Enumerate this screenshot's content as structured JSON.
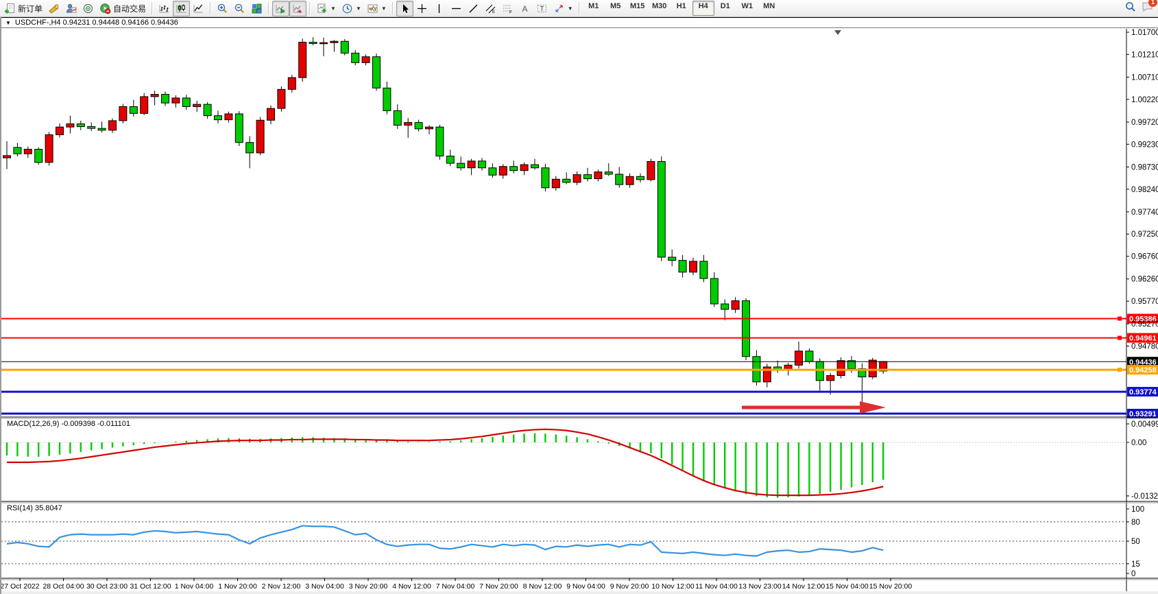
{
  "toolbar": {
    "new_order": "新订单",
    "autotrading": "自动交易",
    "timeframes": [
      "M1",
      "M5",
      "M15",
      "M30",
      "H1",
      "H4",
      "D1",
      "W1",
      "MN"
    ],
    "active_timeframe": "H4",
    "notification_badge": "1"
  },
  "window": {
    "title": "USDCHF-,H4  0.94231 0.94448 0.94166 0.94436"
  },
  "panes": {
    "macd_label": "MACD(12,26,9) -0.009398 -0.011101",
    "rsi_label": "RSI(14) 35.8047"
  },
  "chart_data": {
    "type": "candlestick",
    "symbol": "USDCHF-",
    "timeframe": "H4",
    "ohlc_display": {
      "open": "0.94231",
      "high": "0.94448",
      "low": "0.94166",
      "close": "0.94436"
    },
    "colors": {
      "up": "#e60000",
      "down": "#00cc00",
      "wick": "#000000",
      "macd_hist": "#00cc00",
      "macd_signal": "#d40000",
      "rsi_line": "#3793e0",
      "level_red": "#ff0000",
      "level_orange": "#ffa400",
      "level_blue": "#1111cc",
      "bid_line": "#000000",
      "arrow": "#de2f2f"
    },
    "price_axis_ticks": [
      "1.01700",
      "1.01210",
      "1.00710",
      "1.00220",
      "0.99720",
      "0.99230",
      "0.98730",
      "0.98240",
      "0.97740",
      "0.97250",
      "0.96760",
      "0.96260",
      "0.95770",
      "0.95270",
      "0.94780"
    ],
    "price_levels": [
      {
        "label": "0.95386",
        "price": 0.95386,
        "color_key": "level_red",
        "width": 2,
        "marker": true,
        "type": "resistance-line"
      },
      {
        "label": "0.94961",
        "price": 0.94961,
        "color_key": "level_red",
        "width": 2,
        "marker": true,
        "type": "resistance-line"
      },
      {
        "label": "0.94436",
        "price": 0.94436,
        "color_key": "bid_line",
        "width": 1,
        "marker": false,
        "type": "bid-price-line"
      },
      {
        "label": "0.94258",
        "price": 0.94258,
        "color_key": "level_orange",
        "width": 3,
        "marker": true,
        "type": "support-line"
      },
      {
        "label": "0.93774",
        "price": 0.93774,
        "color_key": "level_blue",
        "width": 3,
        "marker": false,
        "type": "support-line"
      },
      {
        "label": "0.93291",
        "price": 0.93291,
        "color_key": "level_blue",
        "width": 3,
        "marker": false,
        "type": "support-line"
      }
    ],
    "candles": [
      [
        0.9893,
        0.993,
        0.9868,
        0.9898
      ],
      [
        0.9916,
        0.9926,
        0.9896,
        0.9902
      ],
      [
        0.9902,
        0.9918,
        0.9893,
        0.9912
      ],
      [
        0.9912,
        0.9916,
        0.9878,
        0.9883
      ],
      [
        0.9883,
        0.995,
        0.9876,
        0.9944
      ],
      [
        0.9944,
        0.9969,
        0.9938,
        0.9961
      ],
      [
        0.9961,
        0.9986,
        0.9947,
        0.9968
      ],
      [
        0.9968,
        0.9975,
        0.9954,
        0.9962
      ],
      [
        0.9962,
        0.9971,
        0.9952,
        0.9958
      ],
      [
        0.9958,
        0.9973,
        0.9949,
        0.9954
      ],
      [
        0.9954,
        0.998,
        0.9948,
        0.9975
      ],
      [
        0.9975,
        1.0012,
        0.9969,
        1.0006
      ],
      [
        1.0006,
        1.0021,
        0.9984,
        0.9991
      ],
      [
        0.9991,
        1.0036,
        0.9987,
        1.0028
      ],
      [
        1.0028,
        1.0041,
        1.0009,
        1.0033
      ],
      [
        1.0033,
        1.0039,
        1.0007,
        1.0014
      ],
      [
        1.0014,
        1.0031,
        1.0004,
        1.0025
      ],
      [
        1.0025,
        1.0032,
        0.9999,
        1.0006
      ],
      [
        1.0006,
        1.0019,
        0.9994,
        1.0011
      ],
      [
        1.0011,
        1.0016,
        0.9979,
        0.9986
      ],
      [
        0.9986,
        0.9997,
        0.9969,
        0.9977
      ],
      [
        0.9977,
        0.9995,
        0.9971,
        0.999
      ],
      [
        0.999,
        0.9996,
        0.9919,
        0.9927
      ],
      [
        0.9927,
        0.9941,
        0.987,
        0.9904
      ],
      [
        0.9904,
        0.9983,
        0.9899,
        0.9976
      ],
      [
        0.9976,
        1.0009,
        0.9967,
        1.0002
      ],
      [
        1.0002,
        1.0051,
        0.9995,
        1.0044
      ],
      [
        1.0044,
        1.0076,
        1.0037,
        1.007
      ],
      [
        1.007,
        1.0156,
        1.0061,
        1.0148
      ],
      [
        1.0148,
        1.0159,
        1.0141,
        1.0145
      ],
      [
        1.0145,
        1.0158,
        1.0117,
        1.0147
      ],
      [
        1.0147,
        1.0153,
        1.0127,
        1.015
      ],
      [
        1.015,
        1.0155,
        1.0119,
        1.0124
      ],
      [
        1.0124,
        1.0131,
        1.0097,
        1.0103
      ],
      [
        1.0103,
        1.0121,
        1.0097,
        1.0116
      ],
      [
        1.0116,
        1.0123,
        1.0041,
        1.0047
      ],
      [
        1.0047,
        1.0061,
        0.9989,
        0.9997
      ],
      [
        0.9997,
        1.0011,
        0.9957,
        0.9965
      ],
      [
        0.9965,
        0.9981,
        0.9937,
        0.9971
      ],
      [
        0.9971,
        0.9977,
        0.9951,
        0.9957
      ],
      [
        0.9957,
        0.9965,
        0.9945,
        0.9961
      ],
      [
        0.9961,
        0.9966,
        0.9889,
        0.9897
      ],
      [
        0.9897,
        0.9911,
        0.9875,
        0.9881
      ],
      [
        0.9881,
        0.9896,
        0.9865,
        0.9871
      ],
      [
        0.9871,
        0.9891,
        0.9855,
        0.9886
      ],
      [
        0.9886,
        0.9893,
        0.9865,
        0.9871
      ],
      [
        0.9871,
        0.9881,
        0.9849,
        0.9855
      ],
      [
        0.9855,
        0.9879,
        0.9847,
        0.9874
      ],
      [
        0.9874,
        0.9887,
        0.9859,
        0.9865
      ],
      [
        0.9865,
        0.9883,
        0.9855,
        0.9878
      ],
      [
        0.9878,
        0.9891,
        0.9867,
        0.9871
      ],
      [
        0.9871,
        0.988,
        0.9819,
        0.9827
      ],
      [
        0.9827,
        0.9853,
        0.9821,
        0.9846
      ],
      [
        0.9846,
        0.9861,
        0.9835,
        0.9839
      ],
      [
        0.9839,
        0.9863,
        0.9833,
        0.9856
      ],
      [
        0.9856,
        0.9871,
        0.9841,
        0.9847
      ],
      [
        0.9847,
        0.9867,
        0.9841,
        0.9862
      ],
      [
        0.9862,
        0.9881,
        0.9853,
        0.9857
      ],
      [
        0.9857,
        0.9873,
        0.9827,
        0.9834
      ],
      [
        0.9834,
        0.9859,
        0.9827,
        0.9852
      ],
      [
        0.9852,
        0.9859,
        0.9839,
        0.9845
      ],
      [
        0.9845,
        0.9891,
        0.9841,
        0.9885
      ],
      [
        0.9885,
        0.9896,
        0.9665,
        0.9674
      ],
      [
        0.9674,
        0.9691,
        0.9654,
        0.9667
      ],
      [
        0.9667,
        0.9679,
        0.9629,
        0.9641
      ],
      [
        0.9641,
        0.9673,
        0.9634,
        0.9665
      ],
      [
        0.9665,
        0.9679,
        0.9619,
        0.9627
      ],
      [
        0.9627,
        0.9641,
        0.9564,
        0.9571
      ],
      [
        0.9571,
        0.9581,
        0.9535,
        0.9559
      ],
      [
        0.9559,
        0.9586,
        0.9551,
        0.9578
      ],
      [
        0.9578,
        0.9583,
        0.9447,
        0.9455
      ],
      [
        0.9455,
        0.9469,
        0.9391,
        0.9399
      ],
      [
        0.9399,
        0.9439,
        0.9387,
        0.9432
      ],
      [
        0.9432,
        0.9446,
        0.9419,
        0.9425
      ],
      [
        0.9425,
        0.9441,
        0.9413,
        0.9436
      ],
      [
        0.9436,
        0.9488,
        0.9429,
        0.9467
      ],
      [
        0.9467,
        0.9473,
        0.9439,
        0.9444
      ],
      [
        0.9444,
        0.9451,
        0.9377,
        0.9402
      ],
      [
        0.9402,
        0.9419,
        0.9371,
        0.9413
      ],
      [
        0.9413,
        0.9453,
        0.9407,
        0.9446
      ],
      [
        0.9446,
        0.9456,
        0.9419,
        0.9428
      ],
      [
        0.9428,
        0.944,
        0.9346,
        0.941
      ],
      [
        0.941,
        0.9452,
        0.9405,
        0.9447
      ],
      [
        0.9423,
        0.9445,
        0.9417,
        0.9444
      ]
    ],
    "macd": {
      "name": "MACD(12,26,9)",
      "current_values": "-0.009398 -0.011101",
      "axis_labels": [
        "0.004996",
        "0.00",
        "-0.013248"
      ],
      "histogram": [
        -0.0033,
        -0.0035,
        -0.0036,
        -0.0036,
        -0.0034,
        -0.0031,
        -0.0028,
        -0.0024,
        -0.002,
        -0.0017,
        -0.0013,
        -0.001,
        -0.0007,
        -0.0004,
        -0.0002,
        0.0,
        0.0002,
        0.0004,
        0.0006,
        0.0008,
        0.001,
        0.0011,
        0.001,
        0.0009,
        0.0009,
        0.001,
        0.0011,
        0.0012,
        0.0013,
        0.0013,
        0.0012,
        0.0011,
        0.001,
        0.0009,
        0.0008,
        0.0007,
        0.0005,
        0.0003,
        0.0002,
        0.0001,
        0.0001,
        0.0002,
        0.0003,
        0.0005,
        0.0008,
        0.0011,
        0.0014,
        0.0017,
        0.002,
        0.0022,
        0.0023,
        0.0022,
        0.002,
        0.0017,
        0.0013,
        0.0008,
        0.0003,
        -0.0003,
        -0.0009,
        -0.0015,
        -0.0021,
        -0.0027,
        -0.004,
        -0.0055,
        -0.007,
        -0.0083,
        -0.0095,
        -0.0106,
        -0.0115,
        -0.0123,
        -0.013,
        -0.0135,
        -0.0138,
        -0.0139,
        -0.0138,
        -0.0136,
        -0.0133,
        -0.0129,
        -0.0124,
        -0.0119,
        -0.0113,
        -0.0107,
        -0.01,
        -0.0094
      ],
      "signal": [
        -0.005,
        -0.005,
        -0.005,
        -0.0049,
        -0.0048,
        -0.0046,
        -0.0043,
        -0.004,
        -0.0036,
        -0.0032,
        -0.0028,
        -0.0024,
        -0.002,
        -0.0016,
        -0.0012,
        -0.0009,
        -0.0006,
        -0.0003,
        -0.0001,
        0.0001,
        0.0003,
        0.0004,
        0.0005,
        0.0005,
        0.0005,
        0.0006,
        0.0006,
        0.0007,
        0.0007,
        0.0008,
        0.0008,
        0.0008,
        0.0008,
        0.0007,
        0.0007,
        0.0006,
        0.0006,
        0.0005,
        0.0005,
        0.0005,
        0.0005,
        0.0006,
        0.0007,
        0.0009,
        0.0012,
        0.0015,
        0.0019,
        0.0023,
        0.0027,
        0.003,
        0.0032,
        0.0033,
        0.0032,
        0.003,
        0.0026,
        0.0021,
        0.0014,
        0.0006,
        -0.0003,
        -0.0013,
        -0.0023,
        -0.0033,
        -0.0045,
        -0.0058,
        -0.0071,
        -0.0084,
        -0.0096,
        -0.0106,
        -0.0114,
        -0.0121,
        -0.0126,
        -0.013,
        -0.0132,
        -0.0133,
        -0.0133,
        -0.0133,
        -0.0133,
        -0.0132,
        -0.0131,
        -0.0129,
        -0.0126,
        -0.0122,
        -0.0117,
        -0.0111
      ]
    },
    "rsi": {
      "name": "RSI(14)",
      "current_value": "35.8047",
      "axis_labels": [
        "100",
        "80",
        "50",
        "15",
        "0"
      ],
      "level_lines": [
        80,
        50,
        15
      ],
      "values": [
        46,
        48,
        46,
        42,
        41,
        56,
        60,
        61,
        60,
        60,
        60,
        61,
        60,
        64,
        66,
        65,
        63,
        64,
        65,
        63,
        61,
        60,
        52,
        46,
        55,
        60,
        64,
        68,
        74,
        73,
        73,
        72,
        66,
        60,
        62,
        52,
        45,
        42,
        44,
        45,
        45,
        39,
        38,
        41,
        45,
        43,
        41,
        45,
        43,
        45,
        44,
        37,
        42,
        41,
        44,
        42,
        44,
        45,
        41,
        45,
        44,
        49,
        33,
        32,
        31,
        33,
        31,
        29,
        28,
        30,
        28,
        27,
        33,
        35,
        36,
        33,
        34,
        38,
        37,
        36,
        33,
        35,
        40,
        36
      ]
    },
    "time_axis": [
      "27 Oct 2022",
      "28 Oct 04:00",
      "30 Oct 23:00",
      "31 Oct 12:00",
      "1 Nov 04:00",
      "1 Nov 20:00",
      "2 Nov 12:00",
      "3 Nov 04:00",
      "3 Nov 20:00",
      "4 Nov 12:00",
      "7 Nov 04:00",
      "7 Nov 20:00",
      "8 Nov 12:00",
      "9 Nov 04:00",
      "9 Nov 20:00",
      "10 Nov 12:00",
      "11 Nov 04:00",
      "13 Nov 23:00",
      "14 Nov 12:00",
      "15 Nov 04:00",
      "15 Nov 20:00"
    ],
    "annotations": [
      {
        "type": "arrow",
        "direction": "right",
        "color_key": "arrow"
      }
    ]
  }
}
